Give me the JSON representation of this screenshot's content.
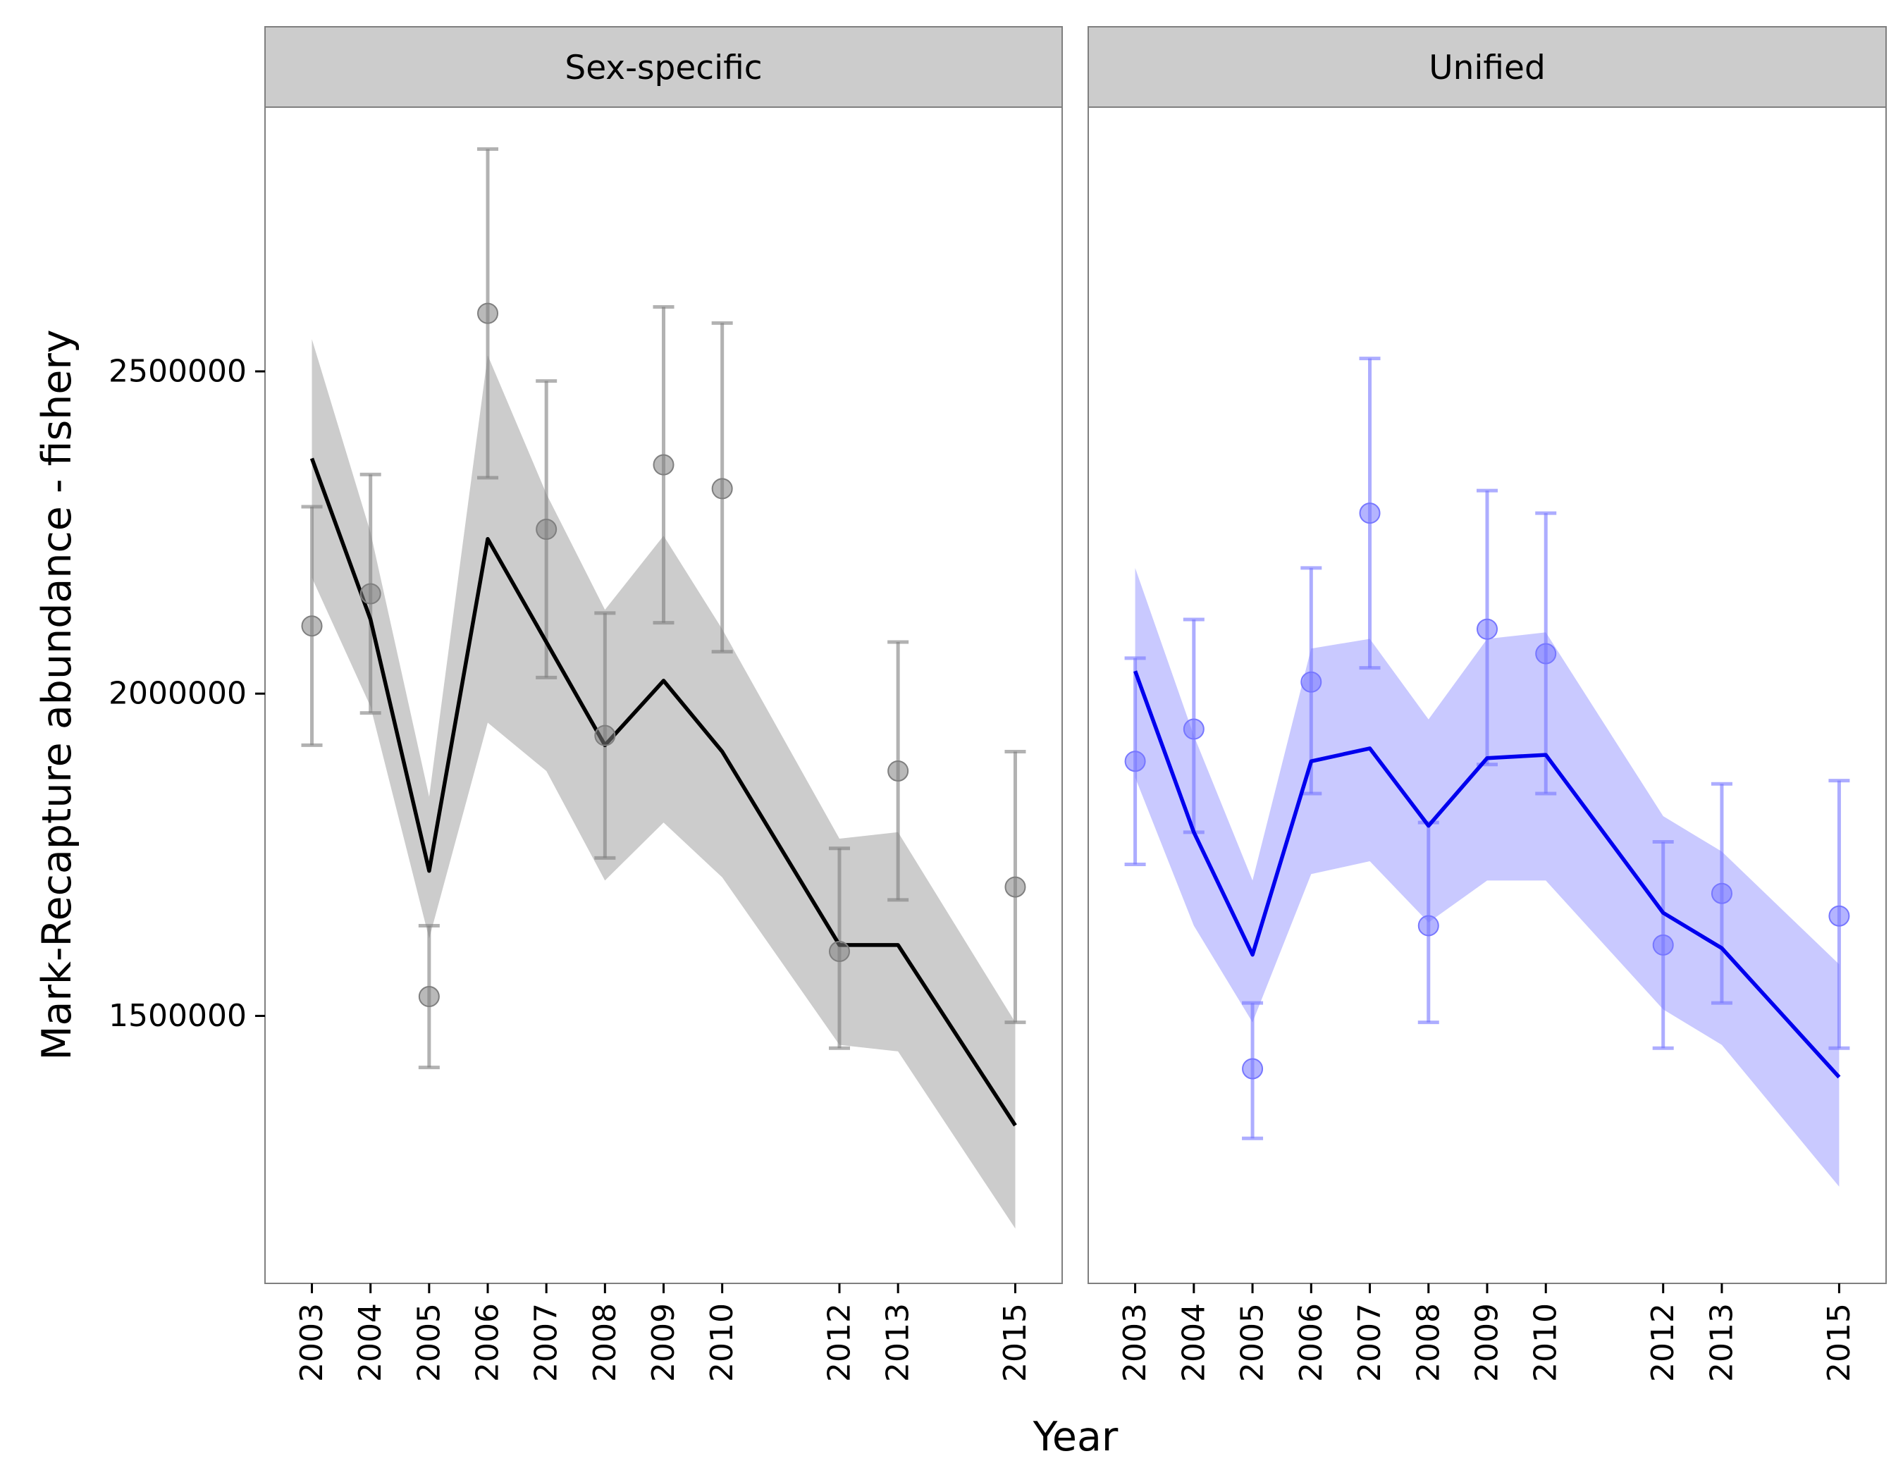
{
  "chart_data": {
    "type": "line",
    "ylabel": "Mark-Recapture abundance - fishery",
    "xlabel": "Year",
    "x": [
      2003,
      2004,
      2005,
      2006,
      2007,
      2008,
      2009,
      2010,
      2012,
      2013,
      2015
    ],
    "x_tick_labels": [
      "2003",
      "2004",
      "2005",
      "2006",
      "2007",
      "2008",
      "2009",
      "2010",
      "2012",
      "2013",
      "2015"
    ],
    "y_ticks": [
      1500000,
      2000000,
      2500000
    ],
    "y_tick_labels": [
      "1500000",
      "2000000",
      "2500000"
    ],
    "xlim": [
      2002.2,
      2015.8
    ],
    "ylim": [
      1085000,
      2910000
    ],
    "grid": false,
    "panels": [
      {
        "name": "Sex-specific",
        "line_color": "#000000",
        "point_color": "#7f7f7f",
        "ribbon_color": "#cccccc",
        "fit": [
          2365000,
          2115000,
          1725000,
          2240000,
          2080000,
          1920000,
          2020000,
          1910000,
          1610000,
          1610000,
          1330000
        ],
        "fit_lower": [
          2180000,
          1980000,
          1620000,
          1955000,
          1880000,
          1710000,
          1800000,
          1715000,
          1455000,
          1445000,
          1170000
        ],
        "fit_upper": [
          2550000,
          2250000,
          1840000,
          2525000,
          2310000,
          2130000,
          2245000,
          2100000,
          1775000,
          1785000,
          1490000
        ],
        "points": [
          2105000,
          2155000,
          1530000,
          2590000,
          2255000,
          1935000,
          2355000,
          2318000,
          1600000,
          1880000,
          1700000
        ],
        "err_lower": [
          1920000,
          1970000,
          1420000,
          2335000,
          2025000,
          1745000,
          2110000,
          2065000,
          1450000,
          1680000,
          1490000
        ],
        "err_upper": [
          2290000,
          2340000,
          1640000,
          2845000,
          2485000,
          2125000,
          2600000,
          2575000,
          1760000,
          2080000,
          1910000
        ]
      },
      {
        "name": "Unified",
        "line_color": "#0000ee",
        "point_color": "#7777ff",
        "ribbon_color": "#c9c9ff",
        "fit": [
          2035000,
          1785000,
          1595000,
          1895000,
          1915000,
          1795000,
          1900000,
          1905000,
          1660000,
          1605000,
          1405000
        ],
        "fit_lower": [
          1870000,
          1640000,
          1490000,
          1720000,
          1740000,
          1645000,
          1710000,
          1710000,
          1510000,
          1455000,
          1235000
        ],
        "fit_upper": [
          2195000,
          1935000,
          1710000,
          2070000,
          2085000,
          1960000,
          2085000,
          2095000,
          1810000,
          1755000,
          1580000
        ],
        "points": [
          1895000,
          1945000,
          1418000,
          2018000,
          2280000,
          1640000,
          2100000,
          2062000,
          1610000,
          1690000,
          1655000
        ],
        "err_lower": [
          1735000,
          1785000,
          1310000,
          1845000,
          2040000,
          1490000,
          1890000,
          1845000,
          1450000,
          1520000,
          1450000
        ],
        "err_upper": [
          2055000,
          2115000,
          1520000,
          2195000,
          2520000,
          1800000,
          2315000,
          2280000,
          1770000,
          1860000,
          1865000
        ]
      }
    ]
  }
}
